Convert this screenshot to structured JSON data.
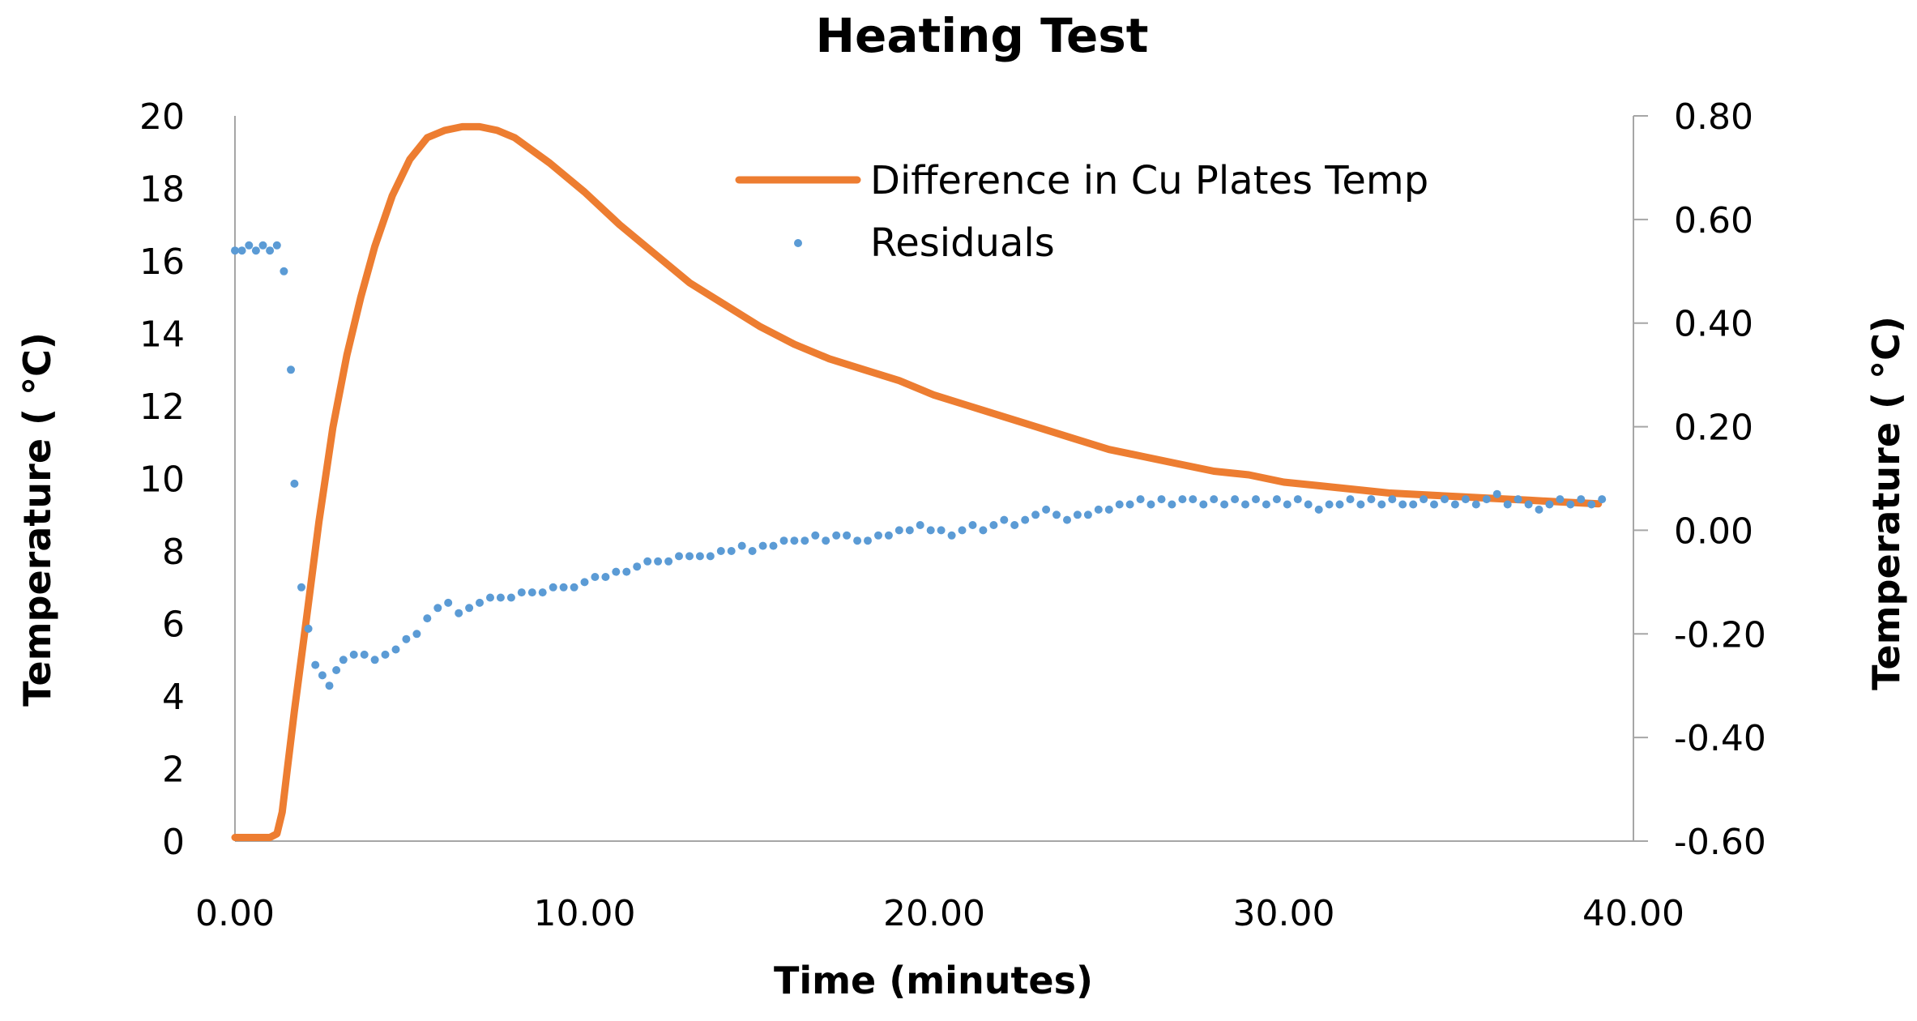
{
  "chart_data": {
    "type": "line",
    "title": "Heating Test",
    "xlabel": "Time (minutes)",
    "ylabel": "Temperature ( °C)",
    "y2label": "Temperature ( °C)",
    "xlim": [
      0,
      40
    ],
    "ylim": [
      0,
      20
    ],
    "y2lim": [
      -0.6,
      0.8
    ],
    "x_ticks": [
      "0.00",
      "10.00",
      "20.00",
      "30.00",
      "40.00"
    ],
    "y_ticks": [
      "0",
      "2",
      "4",
      "6",
      "8",
      "10",
      "12",
      "14",
      "16",
      "18",
      "20"
    ],
    "y2_ticks": [
      "-0.60",
      "-0.40",
      "-0.20",
      "0.00",
      "0.20",
      "0.40",
      "0.60",
      "0.80"
    ],
    "legend": {
      "position": "top-right",
      "entries": [
        "Difference in Cu Plates Temp",
        "Residuals"
      ]
    },
    "colors": {
      "line": "#ed7d31",
      "points": "#5b9bd5",
      "axis": "#a6a6a6"
    },
    "series": [
      {
        "name": "Difference in Cu Plates Temp",
        "kind": "line",
        "axis": "left",
        "x": [
          0.0,
          0.5,
          1.0,
          1.2,
          1.35,
          1.5,
          1.7,
          2.0,
          2.4,
          2.8,
          3.2,
          3.6,
          4.0,
          4.5,
          5.0,
          5.5,
          6.0,
          6.5,
          7.0,
          7.5,
          8.0,
          9.0,
          10.0,
          11.0,
          12.0,
          13.0,
          14.0,
          15.0,
          16.0,
          17.0,
          18.0,
          19.0,
          20.0,
          21.0,
          22.0,
          23.0,
          24.0,
          25.0,
          26.0,
          27.0,
          28.0,
          29.0,
          30.0,
          31.0,
          32.0,
          33.0,
          34.0,
          35.0,
          36.0,
          37.0,
          38.0,
          39.0
        ],
        "y": [
          0.1,
          0.1,
          0.1,
          0.2,
          0.8,
          2.0,
          3.6,
          5.8,
          8.8,
          11.4,
          13.4,
          15.0,
          16.4,
          17.8,
          18.8,
          19.4,
          19.6,
          19.7,
          19.7,
          19.6,
          19.4,
          18.7,
          17.9,
          17.0,
          16.2,
          15.4,
          14.8,
          14.2,
          13.7,
          13.3,
          13.0,
          12.7,
          12.3,
          12.0,
          11.7,
          11.4,
          11.1,
          10.8,
          10.6,
          10.4,
          10.2,
          10.1,
          9.9,
          9.8,
          9.7,
          9.6,
          9.55,
          9.5,
          9.45,
          9.4,
          9.35,
          9.3
        ]
      },
      {
        "name": "Residuals",
        "kind": "scatter",
        "axis": "right",
        "x": [
          0.0,
          0.2,
          0.4,
          0.6,
          0.8,
          1.0,
          1.2,
          1.4,
          1.6,
          1.7,
          1.9,
          2.1,
          2.3,
          2.5,
          2.7,
          2.9,
          3.1,
          3.4,
          3.7,
          4.0,
          4.3,
          4.6,
          4.9,
          5.2,
          5.5,
          5.8,
          6.1,
          6.4,
          6.7,
          7.0,
          7.3,
          7.6,
          7.9,
          8.2,
          8.5,
          8.8,
          9.1,
          9.4,
          9.7,
          10.0,
          10.3,
          10.6,
          10.9,
          11.2,
          11.5,
          11.8,
          12.1,
          12.4,
          12.7,
          13.0,
          13.3,
          13.6,
          13.9,
          14.2,
          14.5,
          14.8,
          15.1,
          15.4,
          15.7,
          16.0,
          16.3,
          16.6,
          16.9,
          17.2,
          17.5,
          17.8,
          18.1,
          18.4,
          18.7,
          19.0,
          19.3,
          19.6,
          19.9,
          20.2,
          20.5,
          20.8,
          21.1,
          21.4,
          21.7,
          22.0,
          22.3,
          22.6,
          22.9,
          23.2,
          23.5,
          23.8,
          24.1,
          24.4,
          24.7,
          25.0,
          25.3,
          25.6,
          25.9,
          26.2,
          26.5,
          26.8,
          27.1,
          27.4,
          27.7,
          28.0,
          28.3,
          28.6,
          28.9,
          29.2,
          29.5,
          29.8,
          30.1,
          30.4,
          30.7,
          31.0,
          31.3,
          31.6,
          31.9,
          32.2,
          32.5,
          32.8,
          33.1,
          33.4,
          33.7,
          34.0,
          34.3,
          34.6,
          34.9,
          35.2,
          35.5,
          35.8,
          36.1,
          36.4,
          36.7,
          37.0,
          37.3,
          37.6,
          37.9,
          38.2,
          38.5,
          38.8,
          39.1
        ],
        "y": [
          0.54,
          0.54,
          0.55,
          0.54,
          0.55,
          0.54,
          0.55,
          0.5,
          0.31,
          0.09,
          -0.11,
          -0.19,
          -0.26,
          -0.28,
          -0.3,
          -0.27,
          -0.25,
          -0.24,
          -0.24,
          -0.25,
          -0.24,
          -0.23,
          -0.21,
          -0.2,
          -0.17,
          -0.15,
          -0.14,
          -0.16,
          -0.15,
          -0.14,
          -0.13,
          -0.13,
          -0.13,
          -0.12,
          -0.12,
          -0.12,
          -0.11,
          -0.11,
          -0.11,
          -0.1,
          -0.09,
          -0.09,
          -0.08,
          -0.08,
          -0.07,
          -0.06,
          -0.06,
          -0.06,
          -0.05,
          -0.05,
          -0.05,
          -0.05,
          -0.04,
          -0.04,
          -0.03,
          -0.04,
          -0.03,
          -0.03,
          -0.02,
          -0.02,
          -0.02,
          -0.01,
          -0.02,
          -0.01,
          -0.01,
          -0.02,
          -0.02,
          -0.01,
          -0.01,
          0.0,
          0.0,
          0.01,
          0.0,
          0.0,
          -0.01,
          0.0,
          0.01,
          0.0,
          0.01,
          0.02,
          0.01,
          0.02,
          0.03,
          0.04,
          0.03,
          0.02,
          0.03,
          0.03,
          0.04,
          0.04,
          0.05,
          0.05,
          0.06,
          0.05,
          0.06,
          0.05,
          0.06,
          0.06,
          0.05,
          0.06,
          0.05,
          0.06,
          0.05,
          0.06,
          0.05,
          0.06,
          0.05,
          0.06,
          0.05,
          0.04,
          0.05,
          0.05,
          0.06,
          0.05,
          0.06,
          0.05,
          0.06,
          0.05,
          0.05,
          0.06,
          0.05,
          0.06,
          0.05,
          0.06,
          0.05,
          0.06,
          0.07,
          0.05,
          0.06,
          0.05,
          0.04,
          0.05,
          0.06,
          0.05,
          0.06,
          0.05,
          0.06
        ]
      }
    ]
  }
}
